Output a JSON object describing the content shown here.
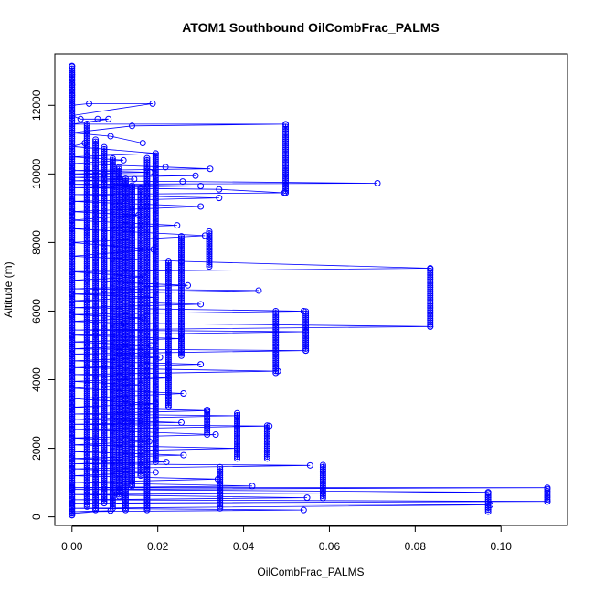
{
  "chart_data": {
    "type": "scatter",
    "title": "ATOM1 Southbound OilCombFrac_PALMS",
    "xlabel": "OilCombFrac_PALMS",
    "ylabel": "Altitude (m)",
    "xlim": [
      -0.004,
      0.1155
    ],
    "ylim": [
      -250,
      13500
    ],
    "x_ticks": [
      0.0,
      0.02,
      0.04,
      0.06,
      0.08,
      0.1
    ],
    "x_tick_labels": [
      "0.00",
      "0.02",
      "0.04",
      "0.06",
      "0.08",
      "0.10"
    ],
    "y_ticks": [
      0,
      2000,
      4000,
      6000,
      8000,
      10000,
      12000
    ],
    "y_tick_labels": [
      "0",
      "2000",
      "4000",
      "6000",
      "8000",
      "10000",
      "12000"
    ],
    "grid": false,
    "legend": "none",
    "color": "#0000ff",
    "marker": "open-circle",
    "connected": true,
    "series": [
      {
        "values": [
          [
            0.0,
            13150
          ],
          [
            0.0,
            12900
          ],
          [
            0.0,
            12600
          ],
          [
            0.0,
            12300
          ],
          [
            0.0,
            12000
          ],
          [
            0.004,
            12050
          ],
          [
            0.0188,
            12050
          ],
          [
            0.0,
            11700
          ],
          [
            0.002,
            11600
          ],
          [
            0.006,
            11600
          ],
          [
            0.0085,
            11600
          ],
          [
            0.0,
            11450
          ],
          [
            0.0498,
            11450
          ],
          [
            0.014,
            11400
          ],
          [
            0.0,
            11200
          ],
          [
            0.009,
            11100
          ],
          [
            0.0165,
            10900
          ],
          [
            0.003,
            10900
          ],
          [
            0.0,
            10800
          ],
          [
            0.0195,
            10600
          ],
          [
            0.0,
            10500
          ],
          [
            0.012,
            10400
          ],
          [
            0.0,
            10300
          ],
          [
            0.0218,
            10200
          ],
          [
            0.0322,
            10150
          ],
          [
            0.0,
            10100
          ],
          [
            0.0182,
            10050
          ],
          [
            0.0,
            10000
          ],
          [
            0.0288,
            9950
          ],
          [
            0.0,
            9900
          ],
          [
            0.0145,
            9850
          ],
          [
            0.0,
            9800
          ],
          [
            0.0258,
            9780
          ],
          [
            0.0712,
            9730
          ],
          [
            0.0,
            9700
          ],
          [
            0.03,
            9650
          ],
          [
            0.0,
            9600
          ],
          [
            0.0343,
            9550
          ],
          [
            0.0495,
            9450
          ],
          [
            0.0,
            9400
          ],
          [
            0.0343,
            9300
          ],
          [
            0.0,
            9200
          ],
          [
            0.03,
            9050
          ],
          [
            0.0,
            8900
          ],
          [
            0.0155,
            8800
          ],
          [
            0.0,
            8650
          ],
          [
            0.0245,
            8500
          ],
          [
            0.0,
            8400
          ],
          [
            0.031,
            8200
          ],
          [
            0.0,
            8000
          ],
          [
            0.019,
            7800
          ],
          [
            0.0,
            7600
          ],
          [
            0.0255,
            7450
          ],
          [
            0.0835,
            7250
          ],
          [
            0.0,
            7150
          ],
          [
            0.017,
            7000
          ],
          [
            0.0,
            6900
          ],
          [
            0.027,
            6750
          ],
          [
            0.0,
            6650
          ],
          [
            0.0435,
            6600
          ],
          [
            0.0,
            6500
          ],
          [
            0.0195,
            6400
          ],
          [
            0.0,
            6300
          ],
          [
            0.03,
            6200
          ],
          [
            0.0,
            6100
          ],
          [
            0.054,
            6000
          ],
          [
            0.0,
            5900
          ],
          [
            0.0165,
            5800
          ],
          [
            0.0,
            5700
          ],
          [
            0.012,
            5650
          ],
          [
            0.0835,
            5550
          ],
          [
            0.0,
            5450
          ],
          [
            0.0545,
            5400
          ],
          [
            0.0,
            5300
          ],
          [
            0.0255,
            5200
          ],
          [
            0.0,
            5100
          ],
          [
            0.0185,
            5000
          ],
          [
            0.0,
            4900
          ],
          [
            0.0545,
            4850
          ],
          [
            0.0,
            4750
          ],
          [
            0.0205,
            4650
          ],
          [
            0.0,
            4550
          ],
          [
            0.03,
            4450
          ],
          [
            0.0,
            4350
          ],
          [
            0.048,
            4250
          ],
          [
            0.0,
            4150
          ],
          [
            0.0225,
            4050
          ],
          [
            0.0,
            3950
          ],
          [
            0.016,
            3850
          ],
          [
            0.0,
            3750
          ],
          [
            0.026,
            3600
          ],
          [
            0.0,
            3450
          ],
          [
            0.0195,
            3300
          ],
          [
            0.0,
            3200
          ],
          [
            0.0315,
            3100
          ],
          [
            0.0,
            3000
          ],
          [
            0.0385,
            2950
          ],
          [
            0.0,
            2850
          ],
          [
            0.0255,
            2750
          ],
          [
            0.0,
            2700
          ],
          [
            0.046,
            2650
          ],
          [
            0.0,
            2550
          ],
          [
            0.0335,
            2400
          ],
          [
            0.0,
            2300
          ],
          [
            0.018,
            2200
          ],
          [
            0.0,
            2100
          ],
          [
            0.0385,
            2000
          ],
          [
            0.0,
            1900
          ],
          [
            0.026,
            1800
          ],
          [
            0.0,
            1700
          ],
          [
            0.022,
            1600
          ],
          [
            0.0,
            1550
          ],
          [
            0.0555,
            1500
          ],
          [
            0.0,
            1400
          ],
          [
            0.0195,
            1300
          ],
          [
            0.0,
            1200
          ],
          [
            0.034,
            1100
          ],
          [
            0.0,
            1000
          ],
          [
            0.042,
            900
          ],
          [
            0.0,
            850
          ],
          [
            0.1108,
            850
          ],
          [
            0.0,
            800
          ],
          [
            0.097,
            720
          ],
          [
            0.0,
            650
          ],
          [
            0.0548,
            560
          ],
          [
            0.0,
            500
          ],
          [
            0.1108,
            450
          ],
          [
            0.0,
            400
          ],
          [
            0.0975,
            350
          ],
          [
            0.0,
            250
          ],
          [
            0.054,
            200
          ],
          [
            0.0,
            150
          ],
          [
            0.009,
            180
          ],
          [
            0.0,
            100
          ],
          [
            0.0,
            50
          ]
        ]
      }
    ],
    "bands": [
      {
        "x": 0.0,
        "y0": 50,
        "y1": 13150
      },
      {
        "x": 0.0035,
        "y0": 300,
        "y1": 11500
      },
      {
        "x": 0.0055,
        "y0": 200,
        "y1": 11000
      },
      {
        "x": 0.0075,
        "y0": 400,
        "y1": 10800
      },
      {
        "x": 0.0095,
        "y0": 250,
        "y1": 10500
      },
      {
        "x": 0.011,
        "y0": 600,
        "y1": 10200
      },
      {
        "x": 0.0125,
        "y0": 200,
        "y1": 9900
      },
      {
        "x": 0.014,
        "y0": 900,
        "y1": 9700
      },
      {
        "x": 0.016,
        "y0": 1200,
        "y1": 9600
      },
      {
        "x": 0.0175,
        "y0": 200,
        "y1": 10500
      },
      {
        "x": 0.0195,
        "y0": 1600,
        "y1": 10600
      },
      {
        "x": 0.0225,
        "y0": 3200,
        "y1": 7500
      },
      {
        "x": 0.0255,
        "y0": 4700,
        "y1": 8200
      },
      {
        "x": 0.0315,
        "y0": 2400,
        "y1": 3150
      },
      {
        "x": 0.0345,
        "y0": 250,
        "y1": 1450
      },
      {
        "x": 0.0385,
        "y0": 1700,
        "y1": 3050
      },
      {
        "x": 0.0455,
        "y0": 1700,
        "y1": 2700
      },
      {
        "x": 0.0475,
        "y0": 4200,
        "y1": 6050
      },
      {
        "x": 0.0545,
        "y0": 4850,
        "y1": 6000
      },
      {
        "x": 0.0585,
        "y0": 550,
        "y1": 1550
      },
      {
        "x": 0.0835,
        "y0": 5550,
        "y1": 7250
      },
      {
        "x": 0.097,
        "y0": 150,
        "y1": 720
      },
      {
        "x": 0.1108,
        "y0": 450,
        "y1": 850
      },
      {
        "x": 0.032,
        "y0": 7300,
        "y1": 8350
      },
      {
        "x": 0.0498,
        "y0": 9450,
        "y1": 11450
      }
    ]
  }
}
